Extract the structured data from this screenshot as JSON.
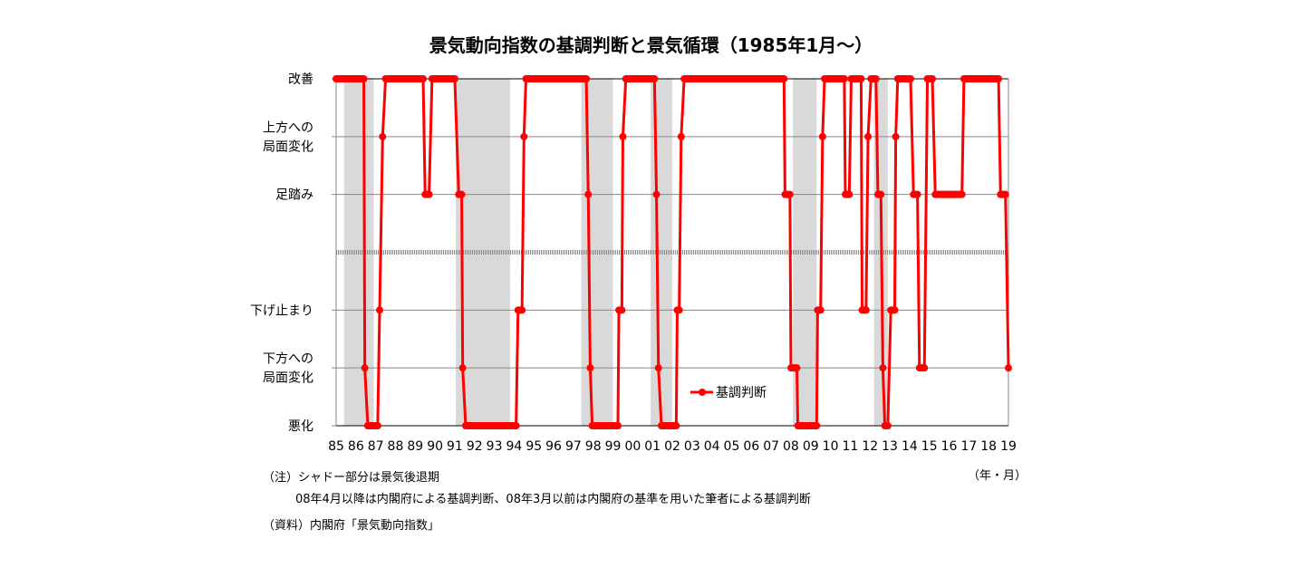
{
  "chart_data": {
    "type": "line",
    "title": "景気動向指数の基調判断と景気循環（1985年1月～）",
    "xlabel": "（年・月）",
    "ylabel": "",
    "xlim": [
      1985,
      2019
    ],
    "x_tick_labels": [
      "85",
      "86",
      "87",
      "88",
      "89",
      "90",
      "91",
      "92",
      "93",
      "94",
      "95",
      "96",
      "97",
      "98",
      "99",
      "00",
      "01",
      "02",
      "03",
      "04",
      "05",
      "06",
      "07",
      "08",
      "09",
      "10",
      "11",
      "12",
      "13",
      "14",
      "15",
      "16",
      "17",
      "18",
      "19"
    ],
    "y_levels": [
      {
        "value": 6,
        "label": "改善"
      },
      {
        "value": 5,
        "label": "上方への\n局面変化"
      },
      {
        "value": 4,
        "label": "足踏み"
      },
      {
        "value": 2,
        "label": "下げ止まり"
      },
      {
        "value": 1,
        "label": "下方への\n局面変化"
      },
      {
        "value": 0,
        "label": "悪化"
      }
    ],
    "divider_value": 3,
    "recessions": [
      [
        1985.4,
        1986.9
      ],
      [
        1991.05,
        1993.8
      ],
      [
        1997.4,
        1999.0
      ],
      [
        2000.9,
        2002.0
      ],
      [
        2008.1,
        2009.3
      ],
      [
        2012.2,
        2012.9
      ]
    ],
    "legend": "基調判断",
    "legend_placement": "bottom-center",
    "color": "#ff0000",
    "series": [
      {
        "name": "基調判断",
        "segments": [
          [
            1985.0,
            1986.4,
            6
          ],
          [
            1986.45,
            1986.45,
            1
          ],
          [
            1986.6,
            1987.1,
            0
          ],
          [
            1987.2,
            1987.2,
            2
          ],
          [
            1987.35,
            1987.35,
            5
          ],
          [
            1987.5,
            1989.4,
            6
          ],
          [
            1989.5,
            1989.7,
            4
          ],
          [
            1989.85,
            1991.0,
            6
          ],
          [
            1991.2,
            1991.35,
            4
          ],
          [
            1991.4,
            1991.4,
            1
          ],
          [
            1991.55,
            1994.1,
            0
          ],
          [
            1994.2,
            1994.4,
            2
          ],
          [
            1994.5,
            1994.5,
            5
          ],
          [
            1994.6,
            1997.65,
            6
          ],
          [
            1997.75,
            1997.75,
            4
          ],
          [
            1997.85,
            1997.85,
            1
          ],
          [
            1997.95,
            1999.25,
            0
          ],
          [
            1999.3,
            1999.45,
            2
          ],
          [
            1999.5,
            1999.5,
            5
          ],
          [
            1999.65,
            2001.1,
            6
          ],
          [
            2001.2,
            2001.2,
            4
          ],
          [
            2001.3,
            2001.3,
            1
          ],
          [
            2001.45,
            2002.2,
            0
          ],
          [
            2002.25,
            2002.35,
            2
          ],
          [
            2002.45,
            2002.45,
            5
          ],
          [
            2002.6,
            2007.65,
            6
          ],
          [
            2007.7,
            2007.95,
            4
          ],
          [
            2008.0,
            2008.3,
            1
          ],
          [
            2008.35,
            2009.3,
            0
          ],
          [
            2009.35,
            2009.5,
            2
          ],
          [
            2009.6,
            2009.6,
            5
          ],
          [
            2009.7,
            2010.7,
            6
          ],
          [
            2010.75,
            2010.95,
            4
          ],
          [
            2011.05,
            2011.55,
            6
          ],
          [
            2011.6,
            2011.8,
            2
          ],
          [
            2011.9,
            2011.9,
            5
          ],
          [
            2012.05,
            2012.3,
            6
          ],
          [
            2012.4,
            2012.55,
            4
          ],
          [
            2012.65,
            2012.65,
            1
          ],
          [
            2012.75,
            2012.9,
            0
          ],
          [
            2013.05,
            2013.25,
            2
          ],
          [
            2013.3,
            2013.3,
            5
          ],
          [
            2013.4,
            2014.05,
            6
          ],
          [
            2014.2,
            2014.4,
            4
          ],
          [
            2014.5,
            2014.75,
            1
          ],
          [
            2014.9,
            2015.15,
            6
          ],
          [
            2015.3,
            2016.65,
            4
          ],
          [
            2016.75,
            2018.5,
            6
          ],
          [
            2018.6,
            2018.85,
            4
          ],
          [
            2019.0,
            2019.0,
            1
          ]
        ]
      }
    ]
  },
  "notes": {
    "note1": "（注）シャドー部分は景気後退期",
    "note2": "08年4月以降は内閣府による基調判断、08年3月以前は内閣府の基準を用いた筆者による基調判断",
    "source": "（資料）内閣府「景気動向指数」"
  }
}
